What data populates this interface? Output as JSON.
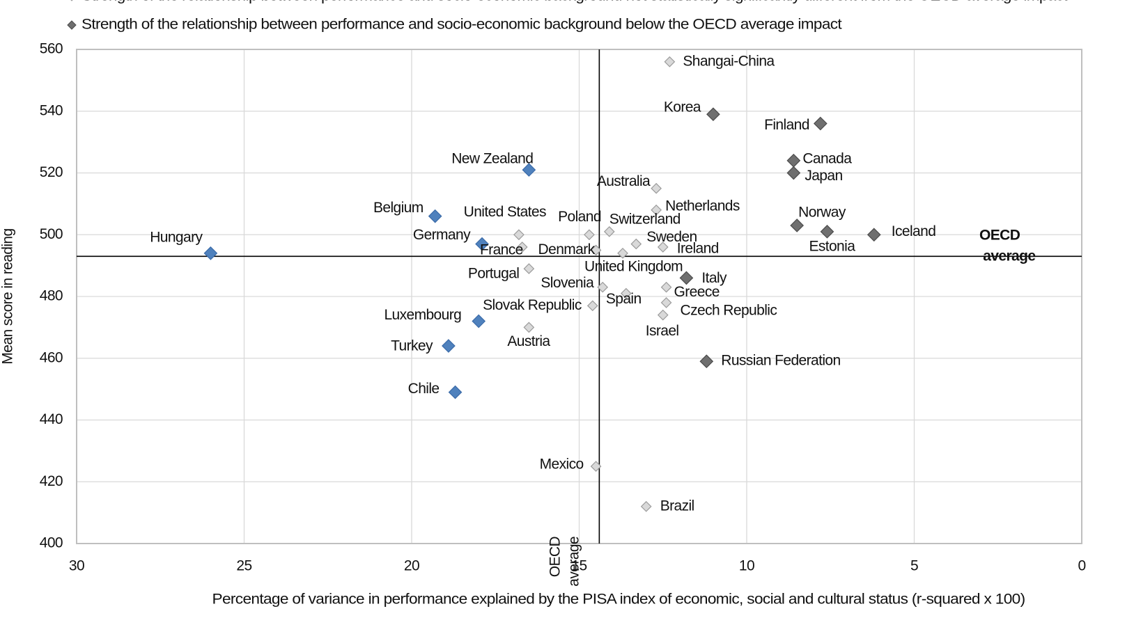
{
  "chart_data": {
    "type": "scatter",
    "legend_lines": [
      {
        "text": "Strength of the relationship between performance and socio-economic background not statistically significantly different from the OECD average impact",
        "series": 1
      },
      {
        "text": "Strength of the relationship between performance and socio-economic background below the OECD average impact",
        "series": 2
      }
    ],
    "x_label": "Percentage of variance in performance explained by the PISA index of economic, social and cultural status (r-squared x 100)",
    "y_label": "Mean score in reading",
    "xlim": [
      30,
      0
    ],
    "ylim": [
      400,
      560
    ],
    "xticks": [
      30,
      25,
      20,
      15,
      10,
      5,
      0
    ],
    "yticks": [
      400,
      420,
      440,
      460,
      480,
      500,
      520,
      540,
      560
    ],
    "grid": true,
    "reference_lines": {
      "x": 14.4,
      "y": 493,
      "x_label": "OECD average",
      "y_label": "OECD average"
    },
    "series": [
      {
        "color": "#4f81bd",
        "labels": [
          "Hungary",
          "New Zealand",
          "Belgium",
          "Germany",
          "Luxembourg",
          "Turkey",
          "Chile"
        ],
        "x": [
          26,
          16.5,
          19.3,
          17.9,
          18,
          18.9,
          18.7
        ],
        "y": [
          494,
          521,
          506,
          497,
          472,
          464,
          449
        ]
      },
      {
        "color": "#d9d9d9",
        "labels": [
          "Shangai-China",
          "Australia",
          "Netherlands",
          "United States",
          "Poland",
          "Switzerland",
          "Sweden",
          "France",
          "Denmark",
          "United Kingdom",
          "Ireland",
          "Portugal",
          "Slovenia",
          "Spain",
          "Greece",
          "Czech Republic",
          "Slovak Republic",
          "Israel",
          "Austria",
          "Mexico",
          "Brazil"
        ],
        "x": [
          12.3,
          12.7,
          12.7,
          16.8,
          14.7,
          14.1,
          13.3,
          16.7,
          14.5,
          13.7,
          12.5,
          16.5,
          14.3,
          13.6,
          12.4,
          12.4,
          14.6,
          12.5,
          16.5,
          14.5,
          13
        ],
        "y": [
          556,
          515,
          508,
          500,
          500,
          501,
          497,
          496,
          495,
          494,
          496,
          489,
          483,
          481,
          483,
          478,
          477,
          474,
          470,
          425,
          412
        ]
      },
      {
        "color": "#6f6f6f",
        "labels": [
          "Korea",
          "Finland",
          "Canada",
          "Japan",
          "Norway",
          "Estonia",
          "Iceland",
          "Italy",
          "Russian Federation"
        ],
        "x": [
          11,
          7.8,
          8.6,
          8.6,
          8.5,
          7.6,
          6.2,
          11.8,
          11.2
        ],
        "y": [
          539,
          536,
          524,
          520,
          503,
          501,
          500,
          486,
          459
        ]
      }
    ]
  }
}
